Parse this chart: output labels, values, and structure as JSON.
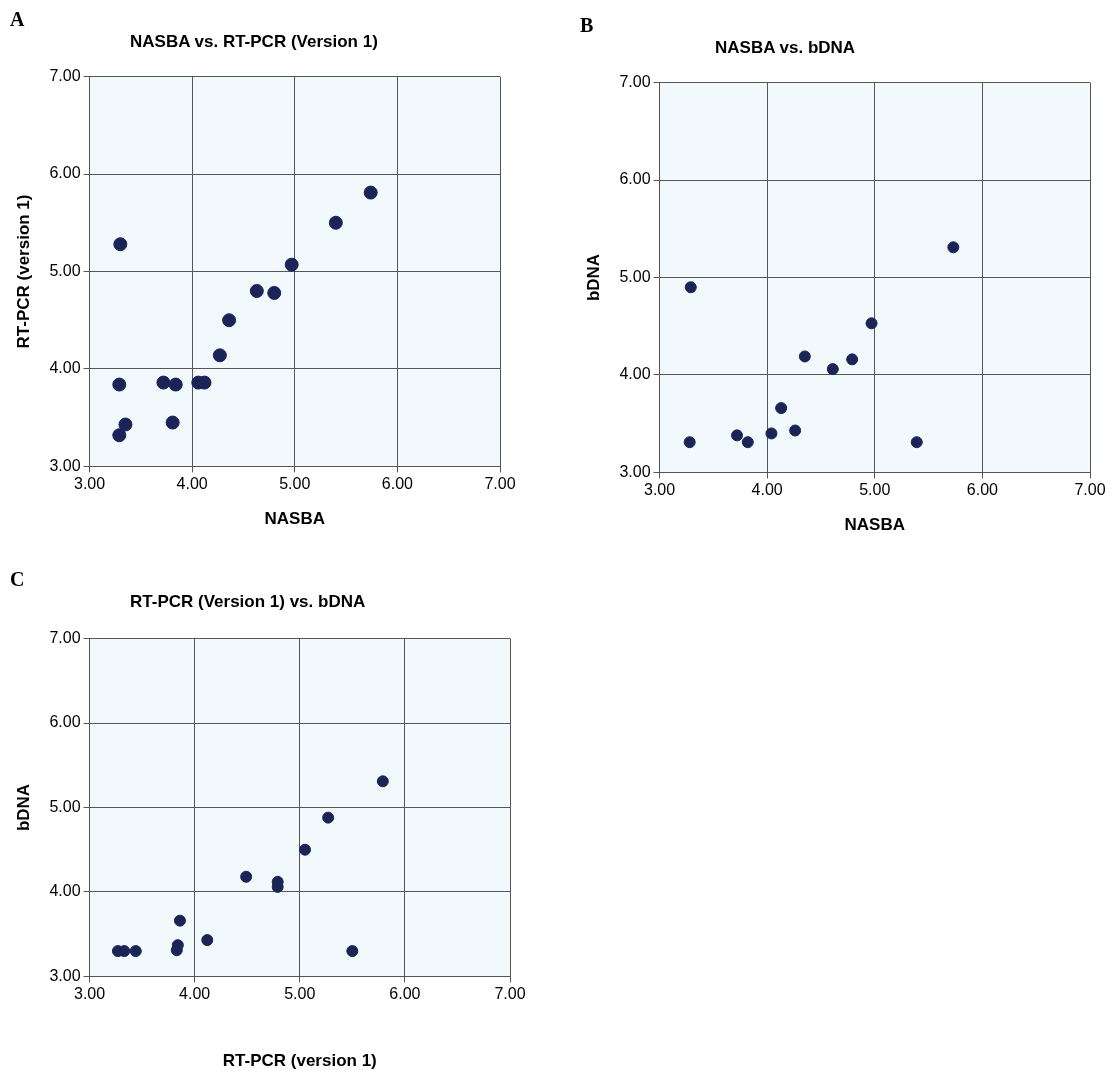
{
  "chart_data": [
    {
      "type": "scatter",
      "title": "NASBA vs. RT-PCR (Version 1)",
      "xlabel": "NASBA",
      "ylabel": "RT-PCR (version 1)",
      "annotations": [
        "A"
      ],
      "color": "#1b2456",
      "marker": "circle",
      "grid": true,
      "x": [
        3.3,
        5.74,
        5.4,
        4.97,
        4.63,
        4.8,
        4.36,
        4.27,
        3.29,
        3.72,
        3.84,
        4.06,
        4.12,
        3.35,
        3.29,
        3.81
      ],
      "values": [
        5.28,
        5.81,
        5.5,
        5.07,
        4.8,
        4.78,
        4.5,
        4.14,
        3.84,
        3.86,
        3.84,
        3.86,
        3.86,
        3.43,
        3.32,
        3.45
      ],
      "xlim": [
        3,
        7
      ],
      "ylim": [
        3,
        7
      ],
      "xticks": [
        {
          "value": 3,
          "label": "3.00"
        },
        {
          "value": 4,
          "label": "4.00"
        },
        {
          "value": 5,
          "label": "5.00"
        },
        {
          "value": 6,
          "label": "6.00"
        },
        {
          "value": 7,
          "label": "7.00"
        }
      ],
      "yticks": [
        {
          "value": 3,
          "label": "3.00"
        },
        {
          "value": 4,
          "label": "4.00"
        },
        {
          "value": 5,
          "label": "5.00"
        },
        {
          "value": 6,
          "label": "6.00"
        },
        {
          "value": 7,
          "label": "7.00"
        }
      ]
    },
    {
      "type": "scatter",
      "title": "NASBA vs. bDNA",
      "xlabel": "NASBA",
      "ylabel": "bDNA",
      "annotations": [
        "B"
      ],
      "color": "#1b2456",
      "marker": "circle",
      "grid": true,
      "x": [
        3.29,
        5.73,
        4.97,
        4.35,
        4.61,
        4.79,
        4.13,
        3.28,
        3.72,
        3.82,
        4.04,
        4.26,
        5.39
      ],
      "values": [
        4.9,
        5.31,
        4.53,
        4.19,
        4.06,
        4.16,
        3.66,
        3.31,
        3.38,
        3.31,
        3.4,
        3.43,
        3.31
      ],
      "xlim": [
        3,
        7
      ],
      "ylim": [
        3,
        7
      ],
      "xticks": [
        {
          "value": 3,
          "label": "3.00"
        },
        {
          "value": 4,
          "label": "4.00"
        },
        {
          "value": 5,
          "label": "5.00"
        },
        {
          "value": 6,
          "label": "6.00"
        },
        {
          "value": 7,
          "label": "7.00"
        }
      ],
      "yticks": [
        {
          "value": 3,
          "label": "3.00"
        },
        {
          "value": 4,
          "label": "4.00"
        },
        {
          "value": 5,
          "label": "5.00"
        },
        {
          "value": 6,
          "label": "6.00"
        },
        {
          "value": 7,
          "label": "7.00"
        }
      ]
    },
    {
      "type": "scatter",
      "title": "RT-PCR (Version 1) vs. bDNA",
      "xlabel": "RT-PCR (version 1)",
      "ylabel": "bDNA",
      "annotations": [
        "C"
      ],
      "color": "#1b2456",
      "marker": "circle",
      "grid": true,
      "x": [
        5.79,
        5.27,
        5.05,
        4.49,
        4.79,
        4.79,
        3.86,
        4.12,
        5.5,
        3.27,
        3.33,
        3.44,
        3.84,
        3.83
      ],
      "values": [
        5.31,
        4.88,
        4.5,
        4.18,
        4.12,
        4.06,
        3.66,
        3.43,
        3.3,
        3.3,
        3.3,
        3.3,
        3.37,
        3.31
      ],
      "xlim": [
        3,
        7
      ],
      "ylim": [
        3,
        7
      ],
      "xticks": [
        {
          "value": 3,
          "label": "3.00"
        },
        {
          "value": 4,
          "label": "4.00"
        },
        {
          "value": 5,
          "label": "5.00"
        },
        {
          "value": 6,
          "label": "6.00"
        },
        {
          "value": 7,
          "label": "7.00"
        }
      ],
      "yticks": [
        {
          "value": 3,
          "label": "3.00"
        },
        {
          "value": 4,
          "label": "4.00"
        },
        {
          "value": 5,
          "label": "5.00"
        },
        {
          "value": 6,
          "label": "6.00"
        },
        {
          "value": 7,
          "label": "7.00"
        }
      ]
    }
  ]
}
